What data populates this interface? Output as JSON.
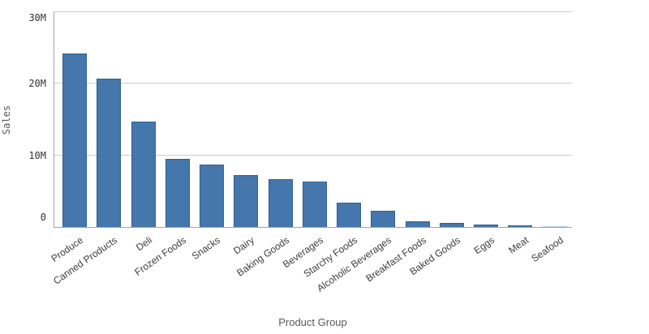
{
  "chart_data": {
    "type": "bar",
    "title": "",
    "xlabel": "Product Group",
    "ylabel": "Sales",
    "ylim": [
      0,
      30000000
    ],
    "grid": "horizontal",
    "legend": "none",
    "yticks": [
      {
        "value": 0,
        "label": "0"
      },
      {
        "value": 10000000,
        "label": "10M"
      },
      {
        "value": 20000000,
        "label": "20M"
      },
      {
        "value": 30000000,
        "label": "30M"
      }
    ],
    "categories": [
      "Produce",
      "Canned Products",
      "Deli",
      "Frozen Foods",
      "Snacks",
      "Dairy",
      "Baking Goods",
      "Beverages",
      "Starchy Foods",
      "Alcoholic Beverages",
      "Breakfast Foods",
      "Baked Goods",
      "Eggs",
      "Meat",
      "Seafood"
    ],
    "bars": [
      {
        "label": "Produce",
        "value": 24200000
      },
      {
        "label": "Canned Products",
        "value": 20700000
      },
      {
        "label": "Deli",
        "value": 14700000
      },
      {
        "label": "Frozen Foods",
        "value": 9550000
      },
      {
        "label": "Snacks",
        "value": 8750000
      },
      {
        "label": "Dairy",
        "value": 7200000
      },
      {
        "label": "Baking Goods",
        "value": 6700000
      },
      {
        "label": "Beverages",
        "value": 6300000
      },
      {
        "label": "Starchy Foods",
        "value": 3450000
      },
      {
        "label": "Alcoholic Beverages",
        "value": 2260000
      },
      {
        "label": "Breakfast Foods",
        "value": 760000
      },
      {
        "label": "Baked Goods",
        "value": 530000
      },
      {
        "label": "Eggs",
        "value": 340000
      },
      {
        "label": "Meat",
        "value": 170000
      },
      {
        "label": "Seafood",
        "value": 80000,
        "fill": "#ccdaeb",
        "border": "#b9cde4"
      }
    ]
  },
  "colors": {
    "bar_fill": "#4677ac",
    "bar_border": "#2d6093",
    "gridline": "#cccccc",
    "axis_line": "#a3a3a3",
    "tick_label": "#333333",
    "category_label": "#3d3d3d",
    "axis_title": "#595959"
  }
}
